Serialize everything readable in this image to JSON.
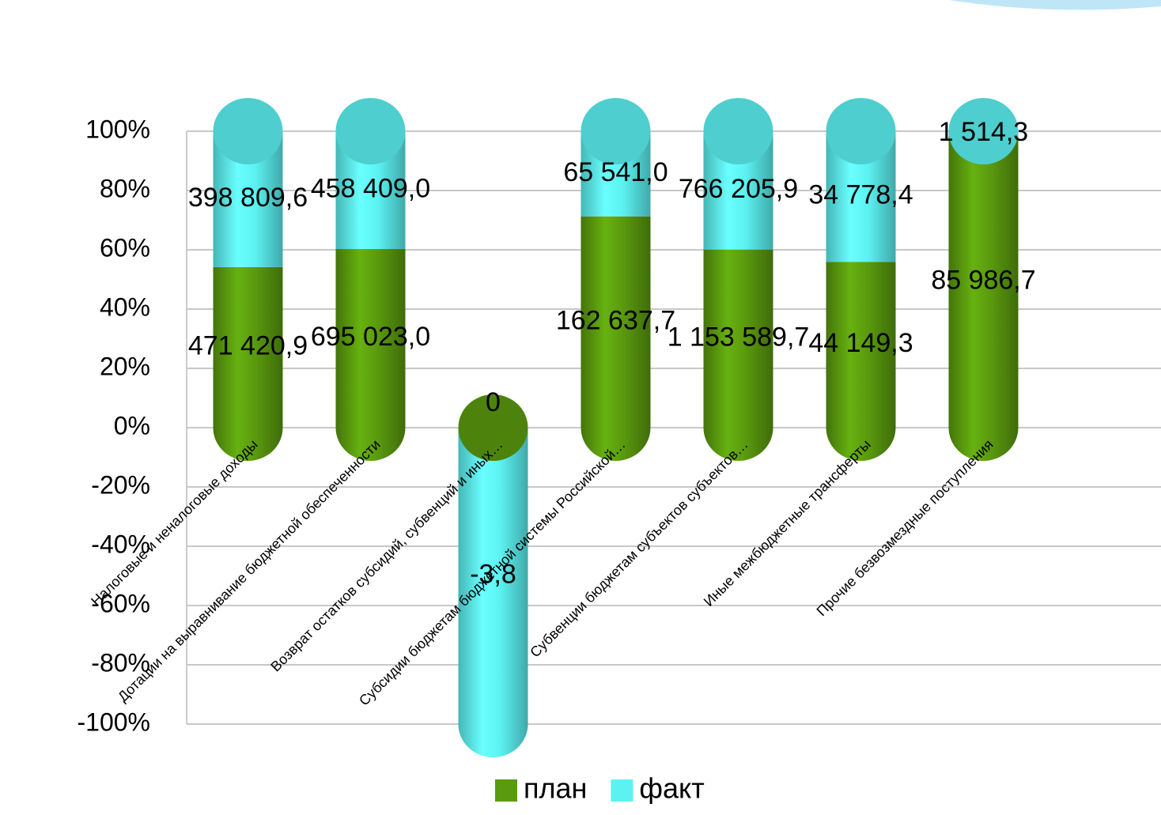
{
  "chart_data": {
    "type": "stacked_cylinder_percent",
    "categories": [
      "Налоговые и неналоговые доходы",
      "Дотации на выравнивание бюджетной обеспеченности",
      "Возврат остатков субсидий, субвенций и иных…",
      "Субсидии бюджетам бюджетной системы Российской…",
      "Субвенции бюджетам субъектов субъектов…",
      "Иные межбюджетные трансферты",
      "Прочие безвозмездные поступления"
    ],
    "series": [
      {
        "name": "план",
        "color": "#5a9a0e",
        "values": [
          471420.9,
          695023.0,
          0,
          162637.7,
          1153589.7,
          44149.3,
          85986.7
        ],
        "value_labels": [
          "471 420,9",
          "695 023,0",
          "0",
          "162 637,7",
          "1 153 589,7",
          "44 149,3",
          "85 986,7"
        ]
      },
      {
        "name": "факт",
        "color": "#5cf2f2",
        "values": [
          398809.6,
          458409.0,
          -3.8,
          65541.0,
          766205.9,
          34778.4,
          1514.3
        ],
        "value_labels": [
          "398 809,6",
          "458 409,0",
          "-3,8",
          "65 541,0",
          "766 205,9",
          "34 778,4",
          "1 514,3"
        ]
      }
    ],
    "ylim": [
      -100,
      100
    ],
    "yticks": [
      {
        "value": -100,
        "label": "-100%"
      },
      {
        "value": -80,
        "label": "-80%"
      },
      {
        "value": -60,
        "label": "-60%"
      },
      {
        "value": -40,
        "label": "-40%"
      },
      {
        "value": -20,
        "label": "-20%"
      },
      {
        "value": 0,
        "label": "0%"
      },
      {
        "value": 20,
        "label": "20%"
      },
      {
        "value": 40,
        "label": "40%"
      },
      {
        "value": 60,
        "label": "60%"
      },
      {
        "value": 80,
        "label": "80%"
      },
      {
        "value": 100,
        "label": "100%"
      }
    ],
    "grid": true,
    "legend": "bottom"
  }
}
